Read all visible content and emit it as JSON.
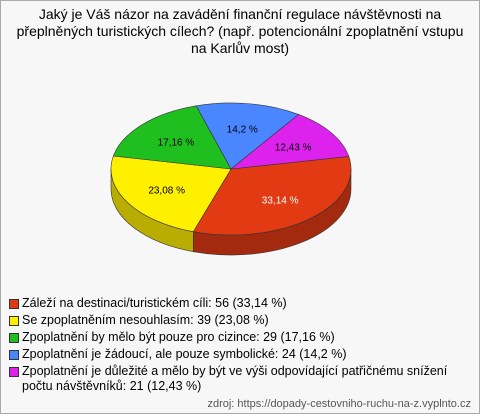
{
  "chart_data": {
    "type": "pie",
    "title": "Jaký je Váš názor na zavádění finanční regulace návštěvnosti na přeplněných turistických cílech? (např. potencionální zpoplatnění vstupu na Karlův most)",
    "categories": [
      "Záleží na destinaci/turistickém cíli: 56 (33,14 %)",
      "Se zpoplatněním nesouhlasím: 39 (23,08 %)",
      "Zpoplatnění by mělo být pouze pro cizince: 29 (17,16 %)",
      "Zpoplatnění je žádoucí, ale pouze symbolické: 24 (14,2 %)",
      "Zpoplatnění je důležité a mělo by být ve výši odpovídající patřičnému snížení počtu návštěvníků: 21 (12,43 %)"
    ],
    "values": [
      33.14,
      23.08,
      17.16,
      14.2,
      12.43
    ],
    "value_labels": [
      "33,14 %",
      "23,08 %",
      "17,16 %",
      "14,2 %",
      "12,43 %"
    ],
    "colors": [
      "#e23b14",
      "#fff000",
      "#1fbf1f",
      "#4a86ff",
      "#dd22ee"
    ],
    "source": "zdroj: https://dopady-cestovniho-ruchu-na-z.vyplnto.cz"
  }
}
